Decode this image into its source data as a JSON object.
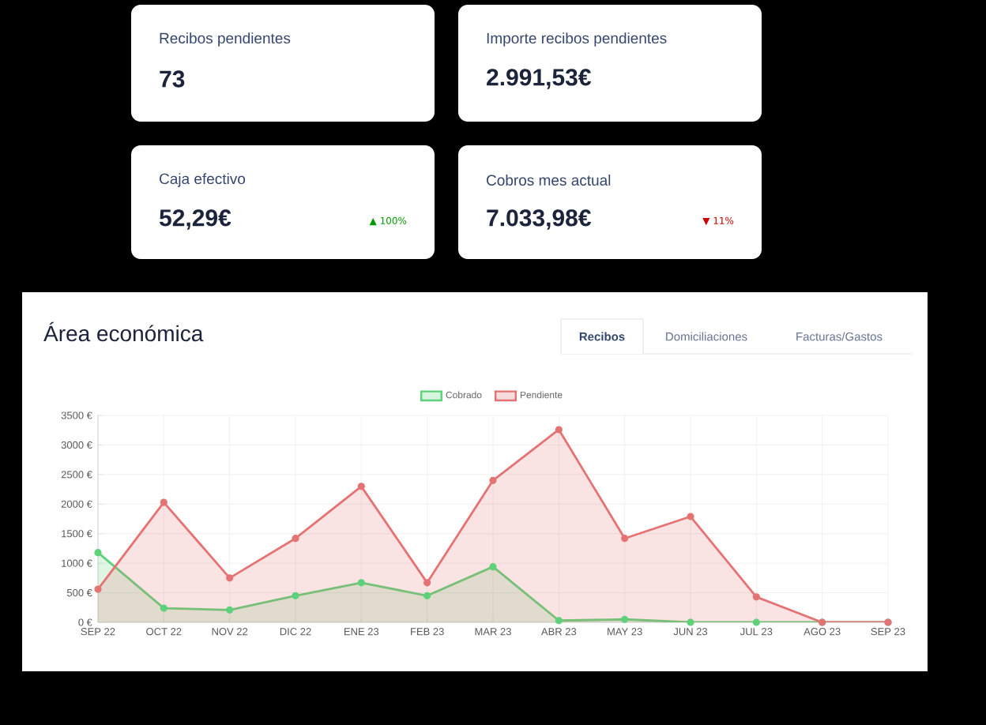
{
  "chart_data": [
    {
      "type": "other",
      "title": "Recibos pendientes",
      "annotations": [
        "73"
      ]
    },
    {
      "type": "other",
      "title": "Importe recibos pendientes",
      "annotations": [
        "2.991,53€"
      ]
    },
    {
      "type": "other",
      "title": "Caja efectivo",
      "annotations": [
        "52,29€",
        "▲ 100%"
      ]
    },
    {
      "type": "other",
      "title": "Cobros mes actual",
      "annotations": [
        "7.033,98€",
        "▼ 11%"
      ]
    },
    {
      "type": "area",
      "title": "Área económica",
      "annotations": [
        "Recibos",
        "Domiciliaciones",
        "Facturas/Gastos"
      ],
      "categories": [
        "SEP 22",
        "OCT 22",
        "NOV 22",
        "DIC 22",
        "ENE 23",
        "FEB 23",
        "MAR 23",
        "ABR 23",
        "MAY 23",
        "JUN 23",
        "JUL 23",
        "AGO 23",
        "SEP 23"
      ],
      "series": [
        {
          "name": "Cobrado",
          "color": "#5dd27a",
          "values": [
            1180,
            240,
            210,
            450,
            670,
            450,
            940,
            30,
            50,
            0,
            0,
            0,
            0
          ]
        },
        {
          "name": "Pendiente",
          "color": "#e57373",
          "values": [
            560,
            2030,
            750,
            1420,
            2300,
            670,
            2400,
            3260,
            1420,
            1790,
            430,
            0,
            0
          ]
        }
      ],
      "ylim": [
        0,
        3500
      ],
      "yticks": [
        {
          "value": 0,
          "label": "0 €"
        },
        {
          "value": 500,
          "label": "500 €"
        },
        {
          "value": 1000,
          "label": "1000 €"
        },
        {
          "value": 1500,
          "label": "1500 €"
        },
        {
          "value": 2000,
          "label": "2000 €"
        },
        {
          "value": 2500,
          "label": "2500 €"
        },
        {
          "value": 3000,
          "label": "3000 €"
        },
        {
          "value": 3500,
          "label": "3500 €"
        }
      ],
      "grid": true,
      "legend": "top",
      "marker": "circle"
    }
  ]
}
